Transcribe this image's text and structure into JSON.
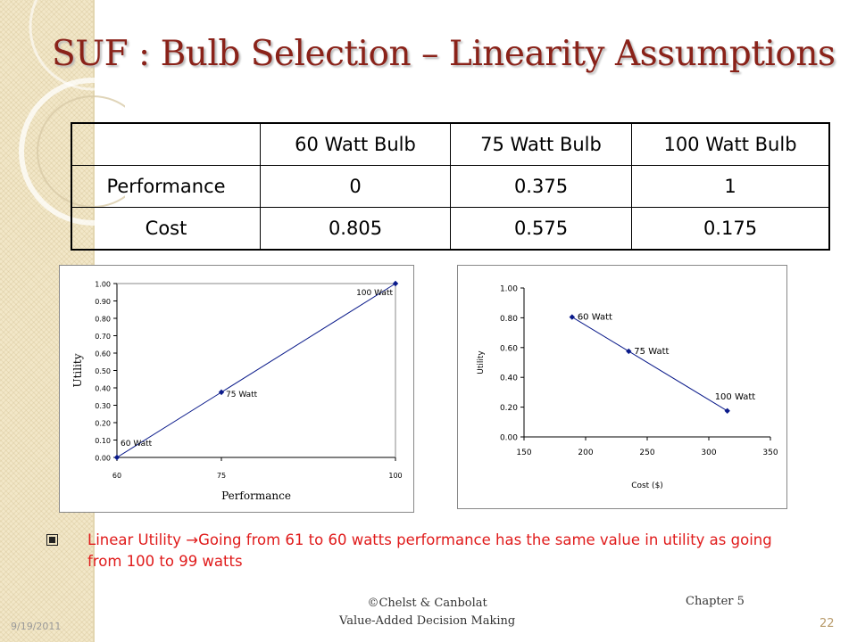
{
  "slide": {
    "title": "SUF : Bulb Selection – Linearity Assumptions",
    "bullet": "Linear Utility →Going from 61 to 60 watts performance has the same value in utility as going from 100 to 99 watts",
    "footer_line1": "©Chelst & Canbolat",
    "footer_line2": "Value-Added Decision Making",
    "chapter": "Chapter 5",
    "date": "9/19/2011",
    "page": "22"
  },
  "table": {
    "header": [
      "",
      "60 Watt Bulb",
      "75 Watt Bulb",
      "100 Watt Bulb"
    ],
    "rows": [
      [
        "Performance",
        "0",
        "0.375",
        "1"
      ],
      [
        "Cost",
        "0.805",
        "0.575",
        "0.175"
      ]
    ]
  },
  "chart_data": [
    {
      "type": "line",
      "xlabel": "Performance",
      "ylabel": "Utility",
      "xlim": [
        60,
        100
      ],
      "ylim": [
        0,
        1
      ],
      "x_ticks": [
        "60",
        "75",
        "100"
      ],
      "y_ticks": [
        "0.00",
        "0.10",
        "0.20",
        "0.30",
        "0.40",
        "0.50",
        "0.60",
        "0.70",
        "0.80",
        "0.90",
        "1.00"
      ],
      "points": [
        {
          "x": 60,
          "y": 0,
          "label": "60 Watt"
        },
        {
          "x": 75,
          "y": 0.375,
          "label": "75 Watt"
        },
        {
          "x": 100,
          "y": 1,
          "label": "100 Watt"
        }
      ],
      "grid": false,
      "line_color": "#0a1a8a"
    },
    {
      "type": "line",
      "xlabel": "Cost ($)",
      "ylabel": "Utility",
      "xlim": [
        150,
        350
      ],
      "ylim": [
        0,
        1
      ],
      "x_ticks": [
        "150",
        "200",
        "250",
        "300",
        "350"
      ],
      "y_ticks": [
        "0.00",
        "0.20",
        "0.40",
        "0.60",
        "0.80",
        "1.00"
      ],
      "points": [
        {
          "x": 189,
          "y": 0.805,
          "label": "60 Watt"
        },
        {
          "x": 235,
          "y": 0.575,
          "label": "75 Watt"
        },
        {
          "x": 315,
          "y": 0.175,
          "label": "100 Watt"
        }
      ],
      "grid": false,
      "line_color": "#0a1a8a"
    }
  ]
}
